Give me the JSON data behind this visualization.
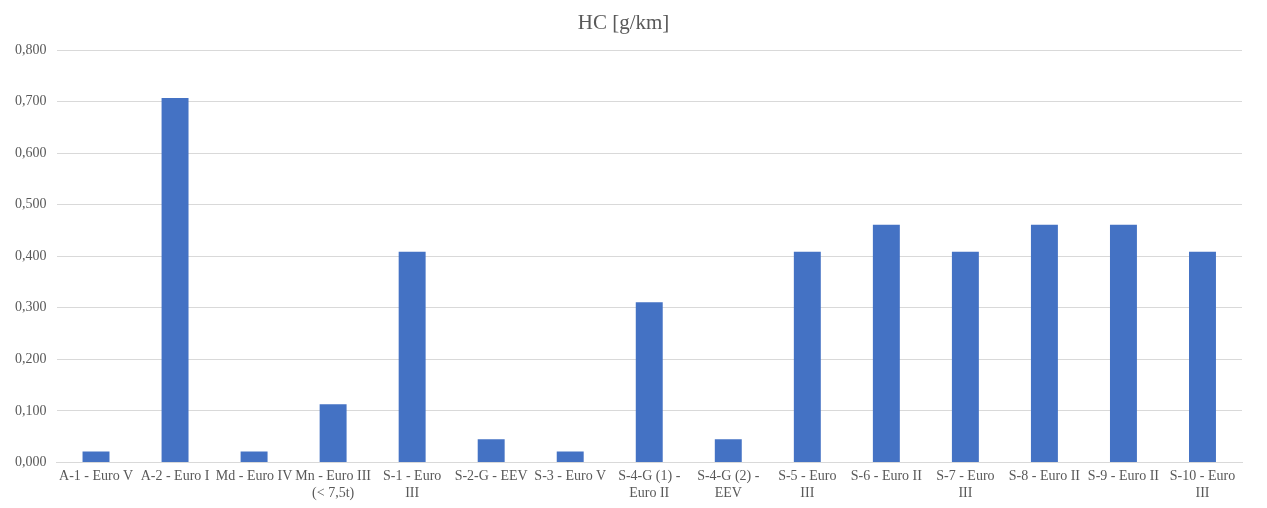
{
  "chart_data": {
    "type": "bar",
    "title": "HC [g/km]",
    "categories": [
      "A-1 - Euro V",
      "A-2 - Euro I",
      "Md - Euro IV",
      "Mn - Euro III (< 7,5t)",
      "S-1 - Euro III",
      "S-2-G - EEV",
      "S-3 - Euro V",
      "S-4-G (1) - Euro II",
      "S-4-G (2) - EEV",
      "S-5 - Euro III",
      "S-6 - Euro II",
      "S-7 - Euro III",
      "S-8 - Euro II",
      "S-9 - Euro II",
      "S-10 - Euro III"
    ],
    "values": [
      0.021,
      0.707,
      0.021,
      0.113,
      0.409,
      0.045,
      0.021,
      0.311,
      0.045,
      0.409,
      0.461,
      0.409,
      0.461,
      0.461,
      0.409
    ],
    "color": "#4472c4",
    "ylim": [
      0,
      0.8
    ],
    "yticks": [
      {
        "value": 0,
        "label": "0,000"
      },
      {
        "value": 0.1,
        "label": "0,100"
      },
      {
        "value": 0.2,
        "label": "0,200"
      },
      {
        "value": 0.3,
        "label": "0,300"
      },
      {
        "value": 0.4,
        "label": "0,400"
      },
      {
        "value": 0.5,
        "label": "0,500"
      },
      {
        "value": 0.6,
        "label": "0,600"
      },
      {
        "value": 0.7,
        "label": "0,700"
      },
      {
        "value": 0.8,
        "label": "0,800"
      }
    ],
    "grid": "y",
    "legend": false
  }
}
